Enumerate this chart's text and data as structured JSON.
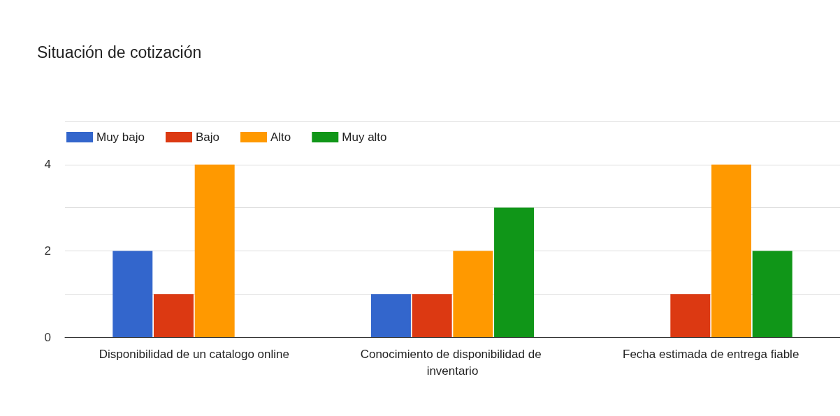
{
  "chart_data": {
    "type": "bar",
    "title": "Situación de cotización",
    "categories": [
      "Disponibilidad de un catalogo online",
      "Conocimiento de disponibilidad de inventario",
      "Fecha estimada de entrega fiable"
    ],
    "series": [
      {
        "name": "Muy bajo",
        "color": "#3366cc",
        "values": [
          2,
          1,
          0
        ]
      },
      {
        "name": "Bajo",
        "color": "#dc3912",
        "values": [
          1,
          1,
          1
        ]
      },
      {
        "name": "Alto",
        "color": "#ff9900",
        "values": [
          4,
          2,
          4
        ]
      },
      {
        "name": "Muy alto",
        "color": "#109618",
        "values": [
          0,
          3,
          2
        ]
      }
    ],
    "ylim": [
      0,
      5
    ],
    "yticks": [
      0,
      {
        "value": 1,
        "label": null
      },
      2,
      {
        "value": 3,
        "label": null
      },
      4,
      {
        "value": 5,
        "label": null
      }
    ],
    "grid": "y",
    "legend": "top left"
  }
}
